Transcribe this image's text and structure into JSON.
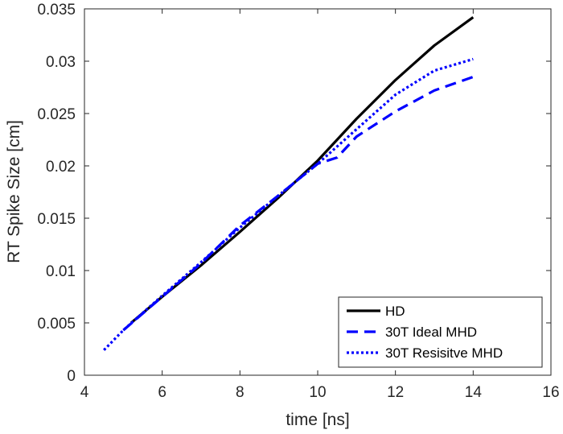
{
  "chart_data": {
    "type": "line",
    "xlabel": "time [ns]",
    "ylabel": "RT Spike Size [cm]",
    "xlim": [
      4,
      16
    ],
    "ylim": [
      0,
      0.035
    ],
    "x_ticks": [
      4,
      6,
      8,
      10,
      12,
      14,
      16
    ],
    "y_ticks": [
      0,
      0.005,
      0.01,
      0.015,
      0.02,
      0.025,
      0.03,
      0.035
    ],
    "x_tick_labels": [
      "4",
      "6",
      "8",
      "10",
      "12",
      "14",
      "16"
    ],
    "y_tick_labels": [
      "0",
      "0.005",
      "0.01",
      "0.015",
      "0.02",
      "0.025",
      "0.03",
      "0.035"
    ],
    "grid": false,
    "legend_position": "bottom-right",
    "series": [
      {
        "name": "HD",
        "color": "#000000",
        "style": "solid",
        "x": [
          5.2,
          6,
          7,
          8,
          9,
          10,
          11,
          12,
          13,
          14
        ],
        "y": [
          0.005,
          0.0075,
          0.0105,
          0.0137,
          0.017,
          0.0205,
          0.0245,
          0.0282,
          0.0315,
          0.0342
        ]
      },
      {
        "name": "30T Ideal MHD",
        "color": "#0000ff",
        "style": "dashed",
        "x": [
          5,
          6,
          7,
          8,
          9,
          10,
          10.5,
          11,
          12,
          13,
          14
        ],
        "y": [
          0.0043,
          0.0075,
          0.0107,
          0.0143,
          0.0172,
          0.0202,
          0.0208,
          0.0228,
          0.0252,
          0.0272,
          0.0285
        ]
      },
      {
        "name": "30T Resisitve MHD",
        "color": "#0000ff",
        "style": "dotted",
        "x": [
          4.5,
          5,
          6,
          7,
          8,
          9,
          10,
          11,
          12,
          13,
          14
        ],
        "y": [
          0.0024,
          0.0043,
          0.0076,
          0.0108,
          0.0141,
          0.0172,
          0.0202,
          0.0235,
          0.0268,
          0.0291,
          0.0302
        ]
      }
    ]
  }
}
